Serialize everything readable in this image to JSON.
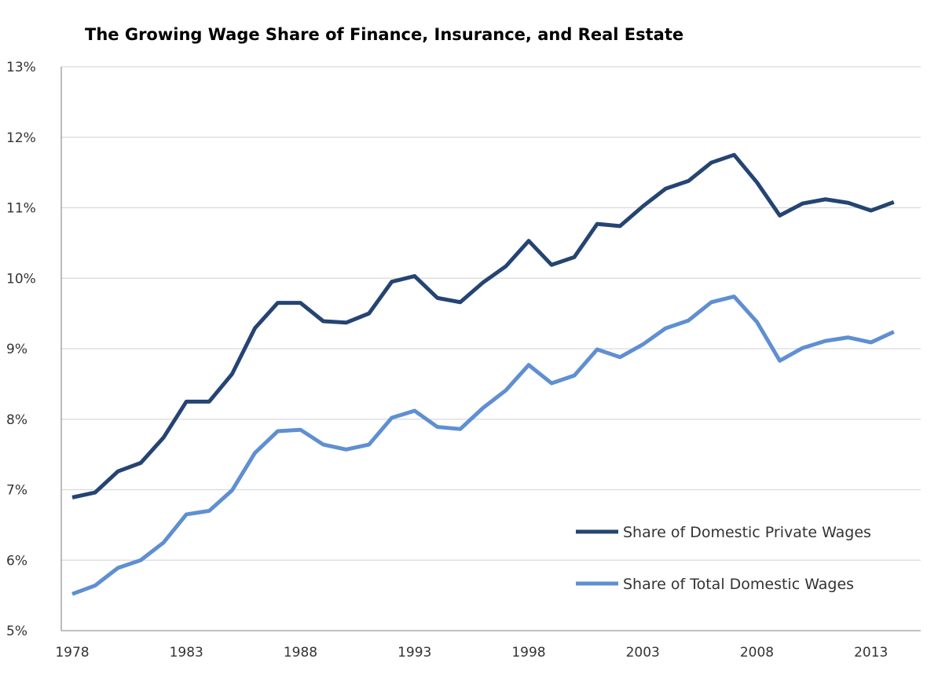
{
  "chart_data": {
    "type": "line",
    "title": "The Growing Wage Share of Finance, Insurance, and Real Estate",
    "xlabel": "",
    "ylabel": "",
    "ylim": [
      5,
      13
    ],
    "xlim": [
      1978,
      2014
    ],
    "grid": true,
    "legend_position": "bottom-right",
    "x_ticks": [
      "1978",
      "1983",
      "1988",
      "1993",
      "1998",
      "2003",
      "2008",
      "2013"
    ],
    "y_ticks": [
      "5%",
      "6%",
      "7%",
      "8%",
      "9%",
      "10%",
      "11%",
      "12%",
      "13%"
    ],
    "x": [
      1978,
      1979,
      1980,
      1981,
      1982,
      1983,
      1984,
      1985,
      1986,
      1987,
      1988,
      1989,
      1990,
      1991,
      1992,
      1993,
      1994,
      1995,
      1996,
      1997,
      1998,
      1999,
      2000,
      2001,
      2002,
      2003,
      2004,
      2005,
      2006,
      2007,
      2008,
      2009,
      2010,
      2011,
      2012,
      2013,
      2014
    ],
    "series": [
      {
        "name": "Share of Domestic Private Wages",
        "color": "#254472",
        "values": [
          6.89,
          6.96,
          7.26,
          7.38,
          7.74,
          8.25,
          8.25,
          8.64,
          9.29,
          9.65,
          9.65,
          9.39,
          9.37,
          9.5,
          9.95,
          10.03,
          9.72,
          9.66,
          9.94,
          10.17,
          10.53,
          10.19,
          10.3,
          10.77,
          10.74,
          11.02,
          11.27,
          11.38,
          11.64,
          11.75,
          11.36,
          10.89,
          11.06,
          11.12,
          11.07,
          10.96,
          11.08
        ]
      },
      {
        "name": "Share of Total Domestic Wages",
        "color": "#5f8fd2",
        "values": [
          5.52,
          5.64,
          5.89,
          6.0,
          6.25,
          6.65,
          6.7,
          6.99,
          7.52,
          7.83,
          7.85,
          7.64,
          7.57,
          7.64,
          8.02,
          8.12,
          7.89,
          7.86,
          8.16,
          8.41,
          8.77,
          8.51,
          8.62,
          8.99,
          8.88,
          9.06,
          9.29,
          9.4,
          9.66,
          9.74,
          9.38,
          8.83,
          9.01,
          9.11,
          9.16,
          9.09,
          9.24
        ]
      }
    ]
  }
}
